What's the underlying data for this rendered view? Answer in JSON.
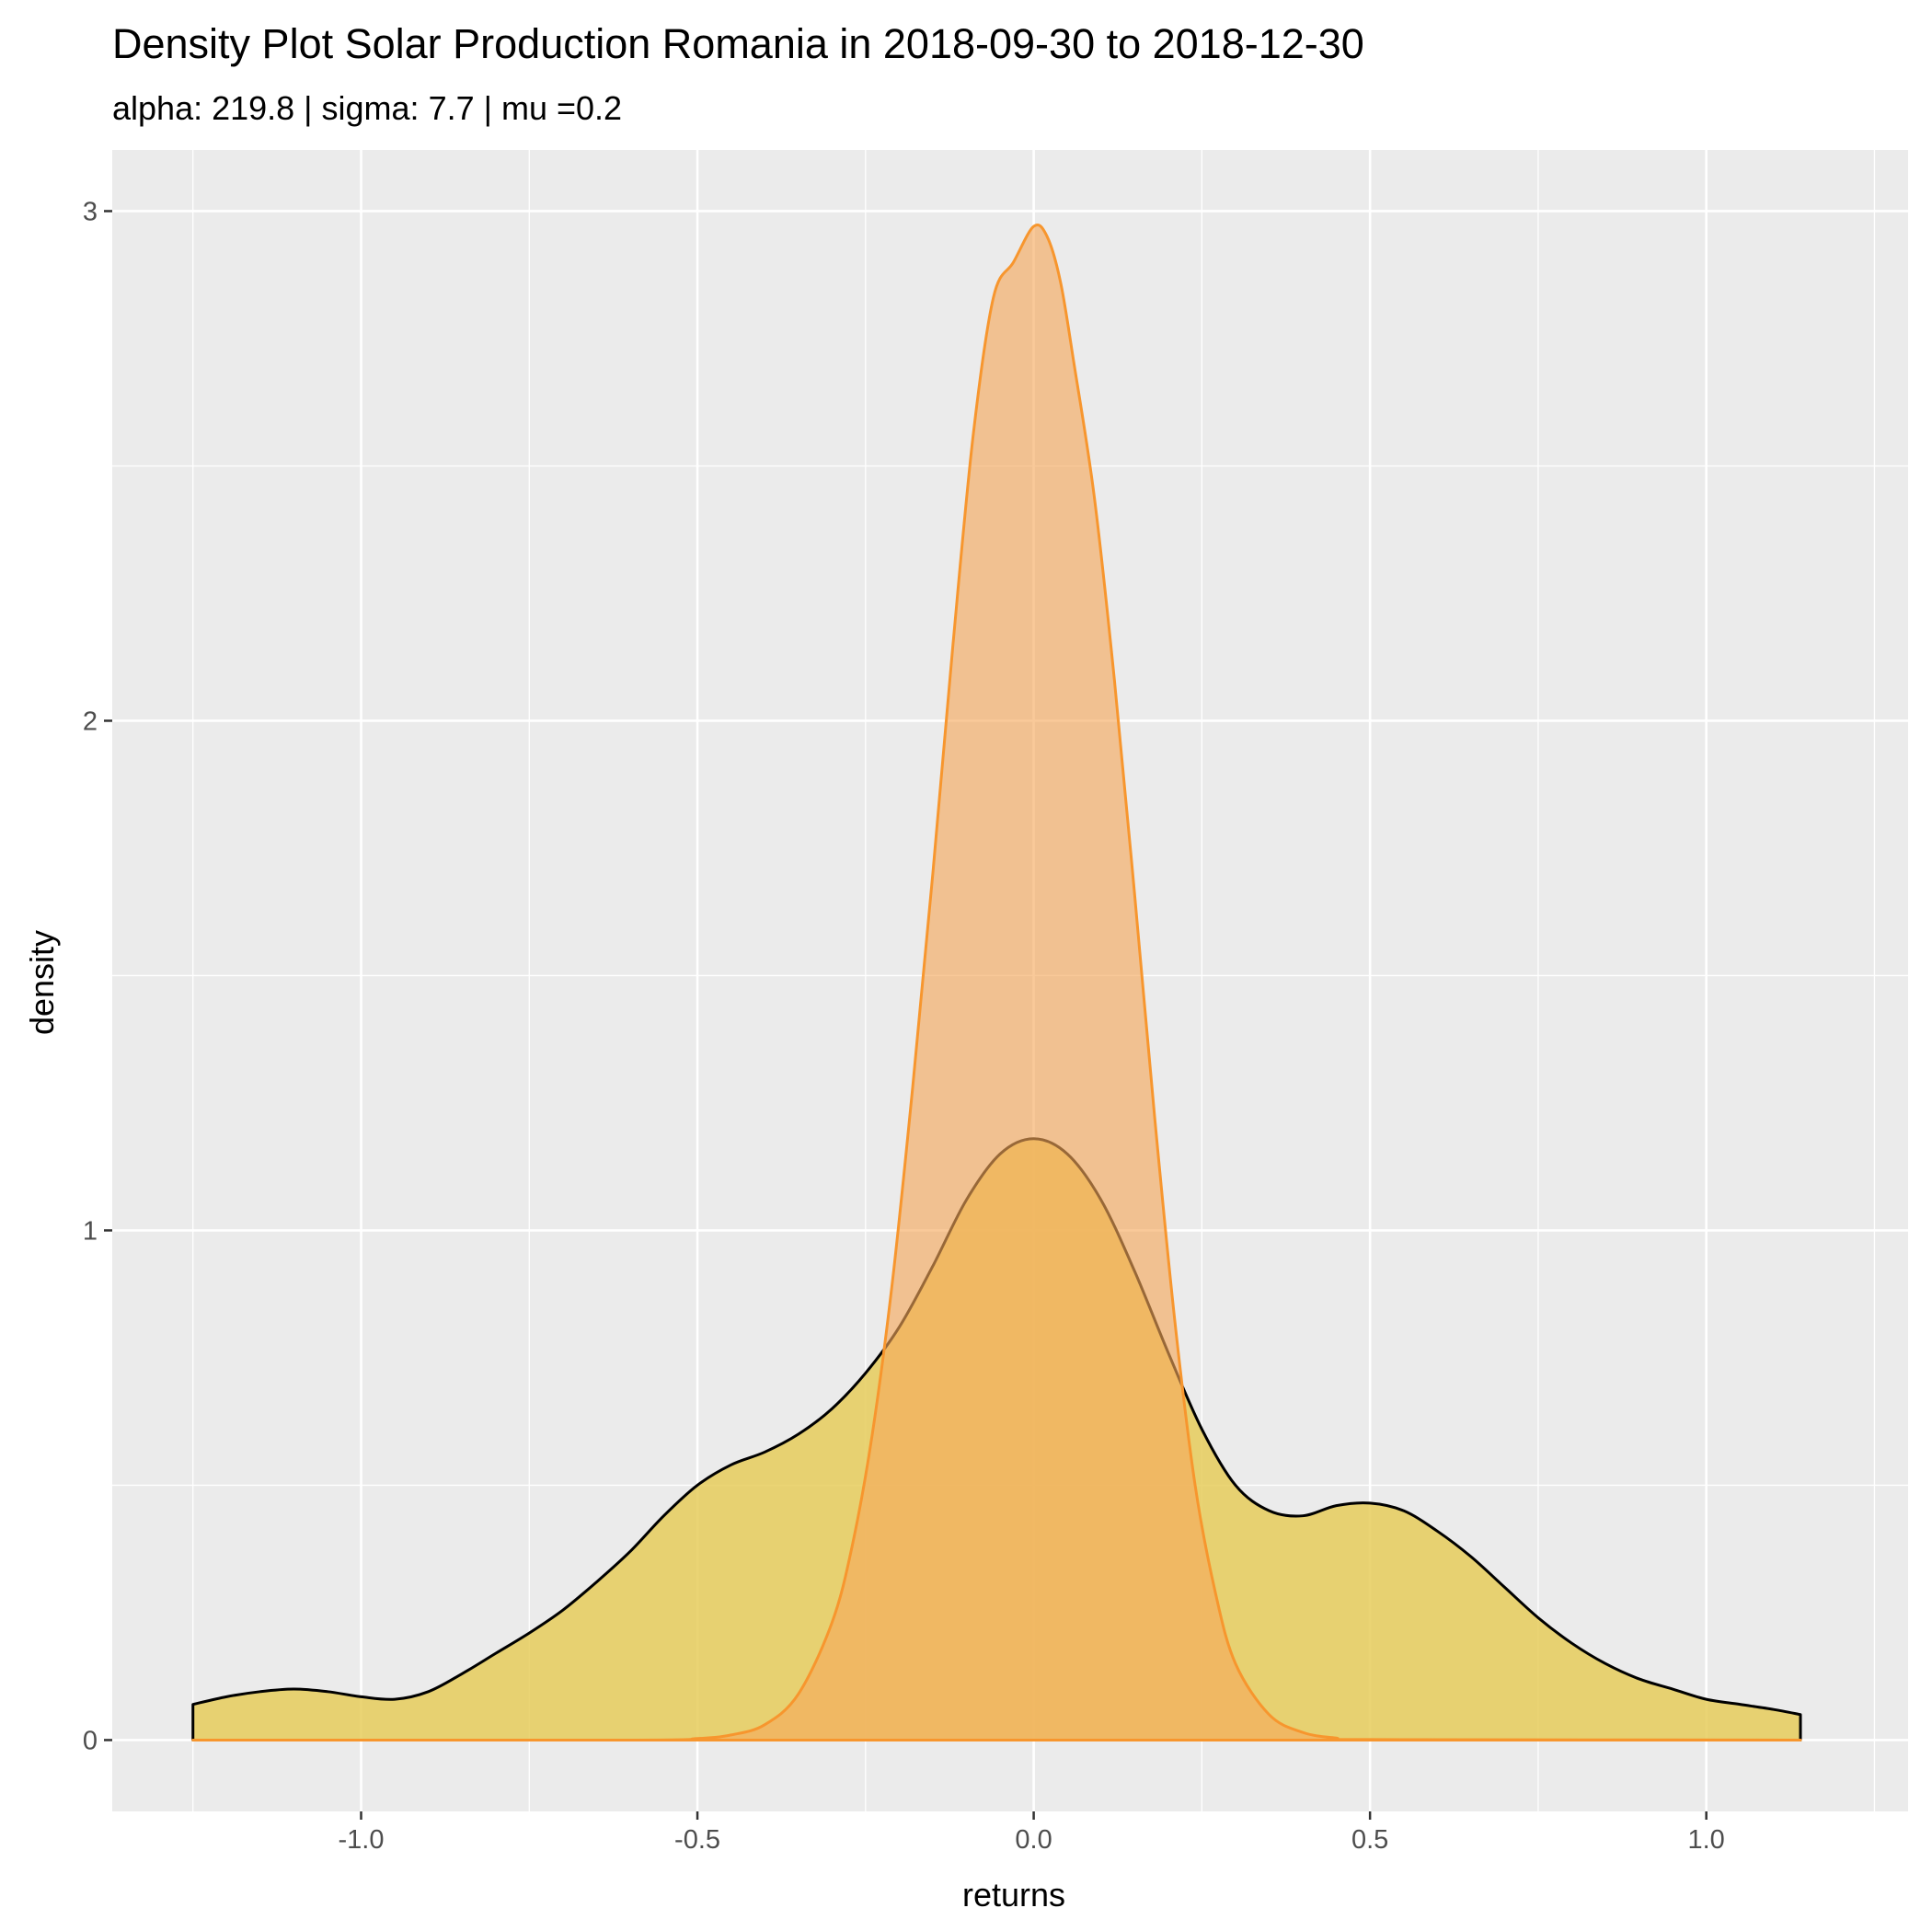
{
  "chart_data": {
    "type": "area",
    "title": "Density Plot Solar Production Romania in 2018-09-30 to 2018-12-30",
    "subtitle": "alpha: 219.8 | sigma: 7.7 | mu =0.2",
    "xlabel": "returns",
    "ylabel": "density",
    "xlim": [
      -1.37,
      1.3
    ],
    "ylim": [
      -0.14,
      3.12
    ],
    "x_ticks": [
      -1.0,
      -0.5,
      0.0,
      0.5,
      1.0
    ],
    "x_tick_labels": [
      "-1.0",
      "-0.5",
      "0.0",
      "0.5",
      "1.0"
    ],
    "y_ticks": [
      0,
      1,
      2,
      3
    ],
    "y_tick_labels": [
      "0",
      "1",
      "2",
      "3"
    ],
    "grid": true,
    "panel_background": "#ebebeb",
    "grid_color": "#ffffff",
    "series": [
      {
        "fill": "#e6cc5c",
        "stroke": "#000000",
        "fill_opacity": 0.85,
        "x": [
          -1.25,
          -1.2,
          -1.15,
          -1.1,
          -1.05,
          -1.0,
          -0.95,
          -0.9,
          -0.85,
          -0.8,
          -0.75,
          -0.7,
          -0.65,
          -0.6,
          -0.55,
          -0.5,
          -0.45,
          -0.4,
          -0.35,
          -0.3,
          -0.25,
          -0.2,
          -0.15,
          -0.1,
          -0.05,
          0.0,
          0.05,
          0.1,
          0.15,
          0.2,
          0.25,
          0.3,
          0.35,
          0.4,
          0.45,
          0.5,
          0.55,
          0.6,
          0.65,
          0.7,
          0.75,
          0.8,
          0.85,
          0.9,
          0.95,
          1.0,
          1.05,
          1.1,
          1.14
        ],
        "y": [
          0.07,
          0.085,
          0.095,
          0.1,
          0.095,
          0.085,
          0.08,
          0.095,
          0.13,
          0.17,
          0.21,
          0.255,
          0.31,
          0.37,
          0.44,
          0.5,
          0.54,
          0.565,
          0.6,
          0.65,
          0.72,
          0.81,
          0.93,
          1.06,
          1.15,
          1.18,
          1.15,
          1.06,
          0.92,
          0.76,
          0.61,
          0.5,
          0.45,
          0.44,
          0.46,
          0.465,
          0.45,
          0.41,
          0.36,
          0.3,
          0.24,
          0.19,
          0.15,
          0.12,
          0.1,
          0.08,
          0.07,
          0.06,
          0.05
        ]
      },
      {
        "fill": "#f5a85a",
        "stroke": "#f7962e",
        "fill_opacity": 0.62,
        "x": [
          -1.25,
          -0.6,
          -0.5,
          -0.45,
          -0.4,
          -0.35,
          -0.3,
          -0.27,
          -0.24,
          -0.21,
          -0.18,
          -0.15,
          -0.12,
          -0.09,
          -0.06,
          -0.03,
          0.0,
          0.02,
          0.04,
          0.06,
          0.09,
          0.12,
          0.15,
          0.18,
          0.21,
          0.24,
          0.27,
          0.3,
          0.35,
          0.4,
          0.45,
          0.5,
          1.14
        ],
        "y": [
          0.0,
          0.0,
          0.003,
          0.01,
          0.03,
          0.09,
          0.23,
          0.38,
          0.6,
          0.9,
          1.28,
          1.7,
          2.15,
          2.56,
          2.83,
          2.9,
          2.97,
          2.95,
          2.86,
          2.7,
          2.44,
          2.08,
          1.66,
          1.22,
          0.82,
          0.5,
          0.29,
          0.15,
          0.05,
          0.015,
          0.004,
          0.001,
          0.0
        ]
      }
    ]
  }
}
